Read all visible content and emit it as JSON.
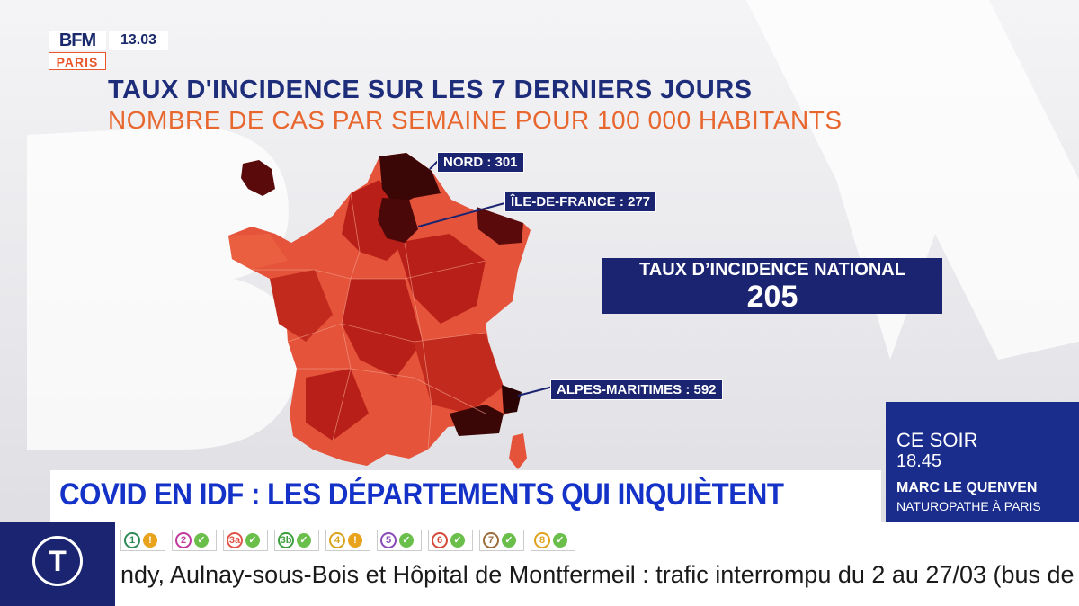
{
  "logo": {
    "brand": "BFM",
    "sub": "PARIS"
  },
  "clock": "13.03",
  "titles": {
    "main": "TAUX D'INCIDENCE SUR LES 7 DERNIERS JOURS",
    "sub": "NOMBRE DE CAS PAR SEMAINE POUR 100 000 HABITANTS"
  },
  "callouts": {
    "nord": "NORD : 301",
    "idf": "ÎLE-DE-FRANCE : 277",
    "am": "ALPES-MARITIMES : 592"
  },
  "national": {
    "label": "TAUX D’INCIDENCE NATIONAL",
    "value": "205"
  },
  "headline": "COVID EN IDF : LES DÉPARTEMENTS QUI INQUIÈTENT",
  "tonight": {
    "label": "CE SOIR",
    "time": "18.45",
    "name": "MARC LE QUENVEN",
    "role": "NATUROPATHE À PARIS"
  },
  "ticker": {
    "icon": "T",
    "lines": [
      {
        "num": "1",
        "status": "warning",
        "color": "#2e8b57"
      },
      {
        "num": "2",
        "status": "ok",
        "color": "#c0399f"
      },
      {
        "num": "3a",
        "status": "ok",
        "color": "#e0554a"
      },
      {
        "num": "3b",
        "status": "ok",
        "color": "#3a9f3a"
      },
      {
        "num": "4",
        "status": "warning",
        "color": "#d9a21b"
      },
      {
        "num": "5",
        "status": "ok",
        "color": "#8a4bb8"
      },
      {
        "num": "6",
        "status": "ok",
        "color": "#d64a3a"
      },
      {
        "num": "7",
        "status": "ok",
        "color": "#9c6b3a"
      },
      {
        "num": "8",
        "status": "ok",
        "color": "#e0a21b"
      }
    ],
    "text": "ndy, Aulnay-sous-Bois et Hôpital de Montfermeil : trafic interrompu du 2 au 27/03 (bus de"
  },
  "colors": {
    "navy": "#1a2470",
    "orange": "#e8672f",
    "map_low": "#e5533a",
    "map_mid": "#b81f18",
    "map_high": "#7a0e0c",
    "map_top": "#3a0606"
  }
}
